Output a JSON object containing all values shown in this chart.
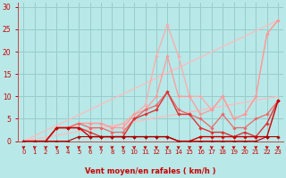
{
  "xlabel": "Vent moyen/en rafales ( km/h )",
  "xlim": [
    -0.5,
    23.5
  ],
  "ylim": [
    0,
    31
  ],
  "xticks": [
    0,
    1,
    2,
    3,
    4,
    5,
    6,
    7,
    8,
    9,
    10,
    11,
    12,
    13,
    14,
    15,
    16,
    17,
    18,
    19,
    20,
    21,
    22,
    23
  ],
  "yticks": [
    0,
    5,
    10,
    15,
    20,
    25,
    30
  ],
  "background_color": "#b8e8e8",
  "grid_color": "#99cccc",
  "lines": [
    {
      "x": [
        0,
        23
      ],
      "y": [
        0,
        27
      ],
      "color": "#ffbbbb",
      "lw": 0.9,
      "marker": false
    },
    {
      "x": [
        0,
        23
      ],
      "y": [
        0,
        10
      ],
      "color": "#ffbbbb",
      "lw": 0.9,
      "marker": false
    },
    {
      "x": [
        0,
        1,
        2,
        3,
        4,
        5,
        6,
        7,
        8,
        9,
        10,
        11,
        12,
        13,
        14,
        15,
        16,
        17,
        18,
        19,
        20,
        21,
        22,
        23
      ],
      "y": [
        0,
        0,
        0,
        3,
        3,
        4,
        4,
        4,
        3,
        4,
        6,
        8,
        19,
        26,
        19,
        10,
        10,
        7,
        10,
        5,
        6,
        10,
        24,
        27
      ],
      "color": "#ffaaaa",
      "lw": 0.9,
      "marker": true
    },
    {
      "x": [
        0,
        1,
        2,
        3,
        4,
        5,
        6,
        7,
        8,
        9,
        10,
        11,
        12,
        13,
        14,
        15,
        16,
        17,
        18,
        19,
        20,
        21,
        22,
        23
      ],
      "y": [
        0,
        0,
        0,
        3,
        3,
        4,
        4,
        4,
        3,
        3,
        6,
        7,
        10,
        19,
        10,
        10,
        6,
        7,
        10,
        5,
        6,
        10,
        24,
        27
      ],
      "color": "#ff9999",
      "lw": 0.9,
      "marker": true
    },
    {
      "x": [
        0,
        1,
        2,
        3,
        4,
        5,
        6,
        7,
        8,
        9,
        10,
        11,
        12,
        13,
        14,
        15,
        16,
        17,
        18,
        19,
        20,
        21,
        22,
        23
      ],
      "y": [
        0,
        0,
        0,
        3,
        3,
        4,
        3,
        3,
        2,
        2,
        5,
        7,
        8,
        11,
        7,
        6,
        5,
        3,
        6,
        3,
        3,
        5,
        6,
        9
      ],
      "color": "#ee6666",
      "lw": 0.9,
      "marker": true
    },
    {
      "x": [
        0,
        1,
        2,
        3,
        4,
        5,
        6,
        7,
        8,
        9,
        10,
        11,
        12,
        13,
        14,
        15,
        16,
        17,
        18,
        19,
        20,
        21,
        22,
        23
      ],
      "y": [
        0,
        0,
        0,
        3,
        3,
        3,
        2,
        1,
        1,
        1,
        5,
        6,
        7,
        11,
        6,
        6,
        3,
        2,
        2,
        1,
        2,
        1,
        4,
        9
      ],
      "color": "#dd3333",
      "lw": 1.0,
      "marker": true
    },
    {
      "x": [
        0,
        1,
        2,
        3,
        4,
        5,
        6,
        7,
        8,
        9,
        10,
        11,
        12,
        13,
        14,
        15,
        16,
        17,
        18,
        19,
        20,
        21,
        22,
        23
      ],
      "y": [
        0,
        0,
        0,
        3,
        3,
        3,
        1,
        1,
        1,
        1,
        1,
        1,
        1,
        1,
        0,
        0,
        1,
        1,
        1,
        1,
        1,
        1,
        1,
        9
      ],
      "color": "#cc0000",
      "lw": 1.0,
      "marker": true
    },
    {
      "x": [
        0,
        1,
        2,
        3,
        4,
        5,
        6,
        7,
        8,
        9,
        10,
        11,
        12,
        13,
        14,
        15,
        16,
        17,
        18,
        19,
        20,
        21,
        22,
        23
      ],
      "y": [
        0,
        0,
        0,
        0,
        0,
        1,
        1,
        1,
        1,
        1,
        1,
        1,
        1,
        1,
        0,
        0,
        0,
        0,
        0,
        0,
        0,
        0,
        1,
        1
      ],
      "color": "#aa0000",
      "lw": 0.8,
      "marker": true
    }
  ],
  "marker_symbol": "D",
  "marker_size": 1.8,
  "arrow_color": "#cc0000",
  "xlabel_color": "#cc0000",
  "tick_color": "#cc0000",
  "ylabel_color": "#cc0000",
  "axis_line_color": "#cc4444"
}
